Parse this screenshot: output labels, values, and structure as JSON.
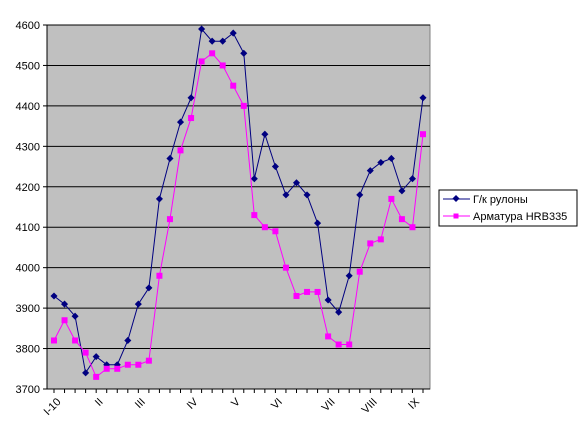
{
  "chart_data": {
    "type": "line",
    "title": "",
    "xlabel": "",
    "ylabel": "",
    "ylim": [
      3700,
      4600
    ],
    "y_ticks": [
      3700,
      3800,
      3900,
      4000,
      4100,
      4200,
      4300,
      4400,
      4500,
      4600
    ],
    "grid": "horizontal",
    "legend_position": "right",
    "plot_background": "#c0c0c0",
    "x_labels": [
      {
        "label": "I-10",
        "index": 0
      },
      {
        "label": "II",
        "index": 4
      },
      {
        "label": "III",
        "index": 8
      },
      {
        "label": "IV",
        "index": 13
      },
      {
        "label": "V",
        "index": 17
      },
      {
        "label": "VI",
        "index": 21
      },
      {
        "label": "VII",
        "index": 26
      },
      {
        "label": "VIII",
        "index": 30
      },
      {
        "label": "IX",
        "index": 34
      }
    ],
    "series": [
      {
        "name": "Г/к рулоны",
        "color": "#000080",
        "marker": "diamond",
        "values": [
          3930,
          3910,
          3880,
          3740,
          3780,
          3760,
          3760,
          3820,
          3910,
          3950,
          4170,
          4270,
          4360,
          4420,
          4590,
          4560,
          4560,
          4580,
          4530,
          4220,
          4330,
          4250,
          4180,
          4210,
          4180,
          4110,
          3920,
          3890,
          3980,
          4180,
          4240,
          4260,
          4270,
          4190,
          4220,
          4420
        ]
      },
      {
        "name": "Арматура HRB335",
        "color": "#ff00ff",
        "marker": "square",
        "values": [
          3820,
          3870,
          3820,
          3790,
          3730,
          3750,
          3750,
          3760,
          3760,
          3770,
          3980,
          4120,
          4290,
          4370,
          4510,
          4530,
          4500,
          4450,
          4400,
          4130,
          4100,
          4090,
          4000,
          3930,
          3940,
          3940,
          3830,
          3810,
          3810,
          3990,
          4060,
          4070,
          4170,
          4120,
          4100,
          4330
        ]
      }
    ]
  }
}
